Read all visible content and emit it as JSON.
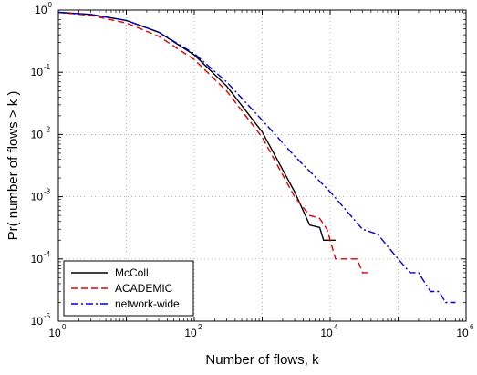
{
  "chart_data": {
    "type": "line",
    "title": "",
    "xlabel": "Number of flows, k",
    "ylabel": "Pr( number of flows > k )",
    "xscale": "log",
    "yscale": "log",
    "xlim": [
      1,
      1000000
    ],
    "ylim": [
      1e-05,
      1
    ],
    "grid": "dotted major grid",
    "legend_position": "bottom-left",
    "x_ticks": [
      {
        "base": "10",
        "exp": "0"
      },
      {
        "base": "10",
        "exp": "2"
      },
      {
        "base": "10",
        "exp": "4"
      },
      {
        "base": "10",
        "exp": "6"
      }
    ],
    "y_ticks": [
      {
        "base": "10",
        "exp": "0"
      },
      {
        "base": "10",
        "exp": "-1"
      },
      {
        "base": "10",
        "exp": "-2"
      },
      {
        "base": "10",
        "exp": "-3"
      },
      {
        "base": "10",
        "exp": "-4"
      },
      {
        "base": "10",
        "exp": "-5"
      }
    ],
    "series": [
      {
        "name": "McColl",
        "color": "#000000",
        "style": "solid",
        "x": [
          1,
          3,
          10,
          30,
          100,
          300,
          1000,
          3000,
          5000,
          7000,
          8000,
          8500,
          9000,
          9500,
          12000
        ],
        "y": [
          0.92,
          0.85,
          0.68,
          0.44,
          0.19,
          0.06,
          0.011,
          0.0012,
          0.00035,
          0.00032,
          0.0002,
          0.0002,
          0.0002,
          0.0002,
          0.0002
        ]
      },
      {
        "name": "ACADEMIC",
        "color": "#dd0000",
        "style": "dashed",
        "x": [
          1,
          3,
          10,
          30,
          100,
          300,
          1000,
          3000,
          5000,
          7000,
          9000,
          12000,
          15000,
          20000,
          25000,
          30000,
          35000,
          40000
        ],
        "y": [
          0.92,
          0.82,
          0.62,
          0.38,
          0.16,
          0.05,
          0.009,
          0.001,
          0.0005,
          0.00045,
          0.0003,
          0.0001,
          0.0001,
          0.0001,
          0.0001,
          6e-05,
          6e-05,
          6e-05
        ]
      },
      {
        "name": "network-wide",
        "color": "#0000dd",
        "style": "dashdot",
        "x": [
          1,
          3,
          10,
          30,
          100,
          300,
          1000,
          3000,
          10000,
          30000,
          50000,
          100000,
          150000,
          200000,
          300000,
          400000,
          500000,
          700000
        ],
        "y": [
          0.92,
          0.85,
          0.68,
          0.44,
          0.2,
          0.07,
          0.017,
          0.0045,
          0.0012,
          0.0003,
          0.00025,
          0.0001,
          6e-05,
          6e-05,
          3e-05,
          3e-05,
          2e-05,
          2e-05
        ]
      }
    ]
  }
}
